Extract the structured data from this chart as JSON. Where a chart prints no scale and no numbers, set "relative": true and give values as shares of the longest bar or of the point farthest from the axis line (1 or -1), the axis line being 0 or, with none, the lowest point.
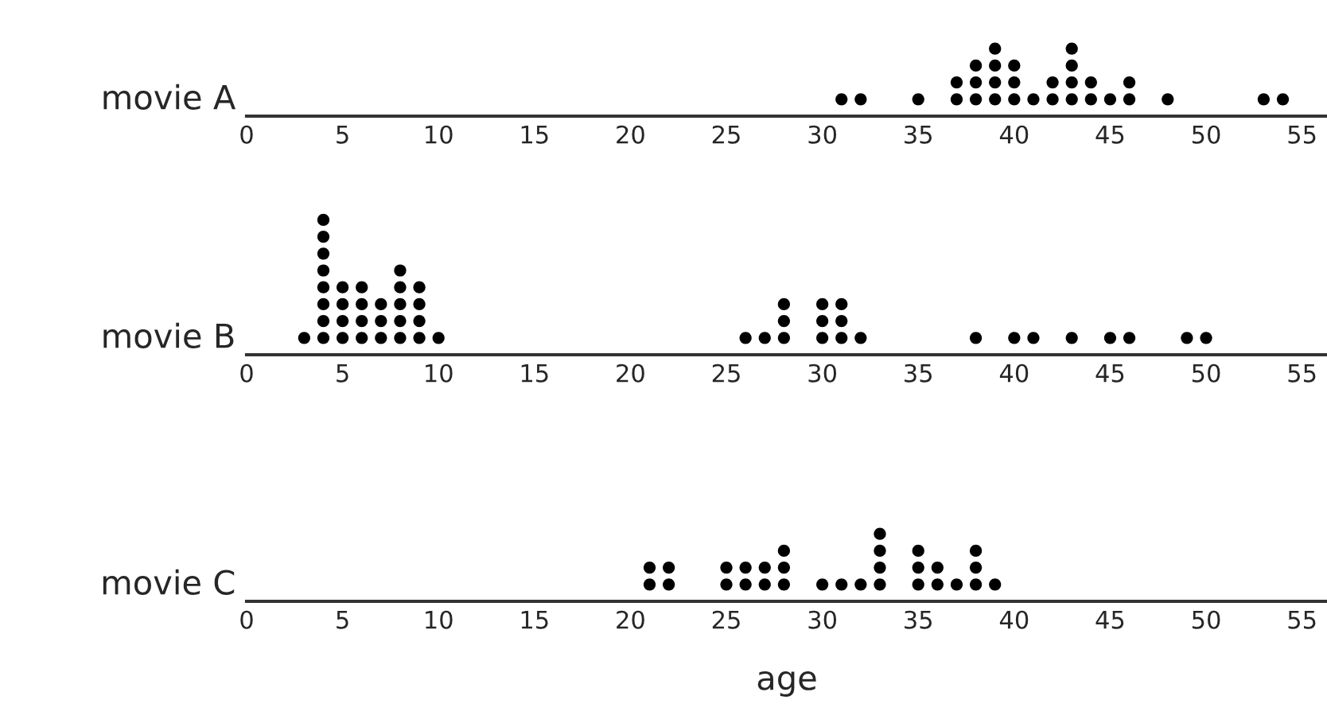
{
  "chart_data": [
    {
      "type": "scatter",
      "relative": true,
      "ylabel": "movie A",
      "xlim": [
        0,
        56.3
      ],
      "xticks": [
        0,
        5,
        10,
        15,
        20,
        25,
        30,
        35,
        40,
        45,
        50,
        55
      ],
      "tick_labels": "x",
      "grid": false,
      "legend": false,
      "marker": "circle",
      "series": [
        {
          "color": "#000000",
          "x": [
            31,
            32,
            35,
            37,
            37,
            38,
            38,
            38,
            39,
            39,
            39,
            39,
            40,
            40,
            40,
            41,
            42,
            42,
            43,
            43,
            43,
            43,
            44,
            44,
            45,
            46,
            46,
            48,
            53,
            54
          ],
          "values": [
            0.25,
            0.25,
            0.25,
            0.25,
            0.5,
            0.25,
            0.5,
            0.75,
            0.25,
            0.5,
            0.75,
            1,
            0.25,
            0.5,
            0.75,
            0.25,
            0.25,
            0.5,
            0.25,
            0.5,
            0.75,
            1,
            0.25,
            0.5,
            0.25,
            0.25,
            0.5,
            0.25,
            0.25,
            0.25
          ]
        }
      ]
    },
    {
      "type": "scatter",
      "relative": true,
      "ylabel": "movie B",
      "xlim": [
        0,
        56.3
      ],
      "xticks": [
        0,
        5,
        10,
        15,
        20,
        25,
        30,
        35,
        40,
        45,
        50,
        55
      ],
      "tick_labels": "x",
      "grid": false,
      "legend": false,
      "marker": "circle",
      "series": [
        {
          "color": "#000000",
          "x": [
            3,
            4,
            4,
            4,
            4,
            4,
            4,
            4,
            4,
            5,
            5,
            5,
            5,
            6,
            6,
            6,
            6,
            7,
            7,
            7,
            8,
            8,
            8,
            8,
            8,
            9,
            9,
            9,
            9,
            10,
            26,
            27,
            28,
            28,
            28,
            30,
            30,
            30,
            31,
            31,
            31,
            32,
            38,
            40,
            41,
            43,
            45,
            46,
            49,
            50
          ],
          "values": [
            0.125,
            0.125,
            0.25,
            0.375,
            0.5,
            0.625,
            0.75,
            0.875,
            1,
            0.125,
            0.25,
            0.375,
            0.5,
            0.125,
            0.25,
            0.375,
            0.5,
            0.125,
            0.25,
            0.375,
            0.125,
            0.25,
            0.375,
            0.5,
            0.625,
            0.125,
            0.25,
            0.375,
            0.5,
            0.125,
            0.125,
            0.125,
            0.125,
            0.25,
            0.375,
            0.125,
            0.25,
            0.375,
            0.125,
            0.25,
            0.375,
            0.125,
            0.125,
            0.125,
            0.125,
            0.125,
            0.125,
            0.125,
            0.125,
            0.125
          ]
        }
      ]
    },
    {
      "type": "scatter",
      "relative": true,
      "ylabel": "movie C",
      "xlabel": "age",
      "xlim": [
        0,
        56.3
      ],
      "xticks": [
        0,
        5,
        10,
        15,
        20,
        25,
        30,
        35,
        40,
        45,
        50,
        55
      ],
      "tick_labels": "x",
      "grid": false,
      "legend": false,
      "marker": "circle",
      "series": [
        {
          "color": "#000000",
          "x": [
            21,
            21,
            22,
            22,
            25,
            25,
            26,
            26,
            27,
            27,
            28,
            28,
            28,
            30,
            31,
            32,
            33,
            33,
            33,
            33,
            35,
            35,
            35,
            36,
            36,
            37,
            38,
            38,
            38,
            39
          ],
          "values": [
            0.25,
            0.5,
            0.25,
            0.5,
            0.25,
            0.5,
            0.25,
            0.5,
            0.25,
            0.5,
            0.25,
            0.5,
            0.75,
            0.25,
            0.25,
            0.25,
            0.25,
            0.5,
            0.75,
            1,
            0.25,
            0.5,
            0.75,
            0.25,
            0.5,
            0.25,
            0.25,
            0.5,
            0.75,
            0.25
          ]
        }
      ]
    }
  ]
}
